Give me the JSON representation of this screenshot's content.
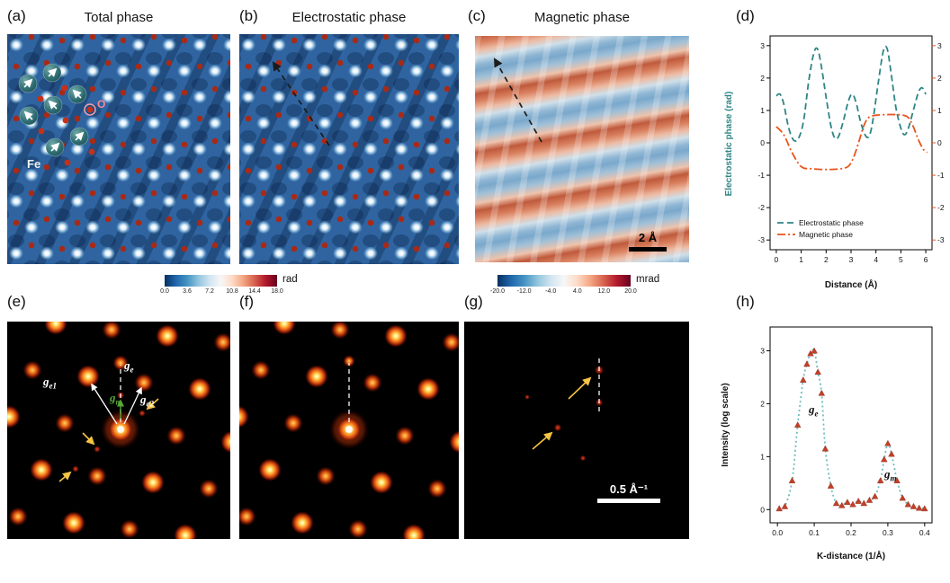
{
  "figure": {
    "panels": {
      "a": {
        "letter": "(a)",
        "title": "Total phase",
        "fe_label": "Fe",
        "o_label": "O"
      },
      "b": {
        "letter": "(b)",
        "title": "Electrostatic phase"
      },
      "c": {
        "letter": "(c)",
        "title": "Magnetic phase",
        "scalebar": "2 Å"
      },
      "d": {
        "letter": "(d)"
      },
      "e": {
        "letter": "(e)",
        "g_e": {
          "base": "g",
          "sub": "e"
        },
        "g_e1": {
          "base": "g",
          "sub": "e1"
        },
        "g_e2": {
          "base": "g",
          "sub": "e2"
        },
        "g_m": {
          "base": "g",
          "sub": "m"
        }
      },
      "f": {
        "letter": "(f)"
      },
      "g": {
        "letter": "(g)",
        "scalebar": "0.5 Å⁻¹"
      },
      "h": {
        "letter": "(h)"
      }
    },
    "colorbars": [
      {
        "unit": "rad",
        "ticks": [
          "0.0",
          "3.6",
          "7.2",
          "10.8",
          "14.4",
          "18.0"
        ]
      },
      {
        "unit": "mrad",
        "ticks": [
          "-20.0",
          "-12.0",
          "-4.0",
          "4.0",
          "12.0",
          "20.0"
        ]
      }
    ],
    "colors": {
      "teal_accent": "#2e8585",
      "orange_accent": "#e8541e",
      "marker_red": "#c2402a",
      "colormap": "blue-white-red"
    }
  },
  "chart_data": [
    {
      "id": "d",
      "type": "line",
      "xlabel": "Distance (Å)",
      "ylabel": "Electrostatic phase (rad)",
      "xlim": [
        -0.25,
        6.25
      ],
      "ylim": [
        -3.3,
        3.3
      ],
      "xticks": [
        "0",
        "1",
        "2",
        "3",
        "4",
        "5",
        "6"
      ],
      "yticks": [
        "3",
        "2",
        "1",
        "0",
        "-1",
        "-2",
        "-3"
      ],
      "yticks_right": [
        "3",
        "2",
        "1",
        "0",
        "-1",
        "-2",
        "-3"
      ],
      "legend_position": "lower left",
      "grid": false,
      "series": [
        {
          "name": "Electrostatic phase",
          "color": "#2e8585",
          "style": "dashed",
          "x": [
            0,
            0.15,
            0.3,
            0.5,
            0.7,
            0.9,
            1.1,
            1.3,
            1.5,
            1.65,
            1.8,
            2.0,
            2.2,
            2.35,
            2.5,
            2.7,
            2.9,
            3.05,
            3.2,
            3.4,
            3.6,
            3.75,
            3.9,
            4.1,
            4.3,
            4.45,
            4.6,
            4.8,
            5.0,
            5.15,
            5.3,
            5.5,
            5.7,
            5.85,
            6.0
          ],
          "y": [
            1.45,
            1.5,
            1.2,
            0.45,
            0.08,
            0.15,
            0.7,
            1.9,
            2.75,
            2.9,
            2.4,
            1.4,
            0.5,
            0.15,
            0.2,
            0.7,
            1.3,
            1.5,
            1.25,
            0.6,
            0.2,
            0.25,
            0.8,
            1.9,
            2.85,
            2.9,
            2.2,
            1.1,
            0.45,
            0.25,
            0.45,
            1.0,
            1.55,
            1.7,
            1.5
          ]
        },
        {
          "name": "Magnetic phase",
          "color": "#e8541e",
          "style": "dashdot",
          "x": [
            0,
            0.3,
            0.6,
            0.9,
            1.1,
            1.4,
            1.8,
            2.2,
            2.6,
            2.9,
            3.1,
            3.3,
            3.5,
            3.7,
            4.0,
            4.4,
            4.8,
            5.1,
            5.3,
            5.5,
            5.7,
            5.9,
            6.05
          ],
          "y": [
            0.5,
            0.25,
            -0.25,
            -0.65,
            -0.78,
            -0.8,
            -0.82,
            -0.82,
            -0.8,
            -0.72,
            -0.45,
            0.0,
            0.5,
            0.78,
            0.85,
            0.87,
            0.87,
            0.85,
            0.78,
            0.5,
            0.1,
            -0.2,
            -0.3
          ]
        }
      ]
    },
    {
      "id": "h",
      "type": "line+marker",
      "xlabel": "K-distance (1/Å)",
      "ylabel": "Intensity (log scale)",
      "xlim": [
        -0.02,
        0.42
      ],
      "ylim": [
        -0.25,
        3.45
      ],
      "xticks": [
        "0.0",
        "0.1",
        "0.2",
        "0.3",
        "0.4"
      ],
      "yticks": [
        "0",
        "1",
        "2",
        "3"
      ],
      "grid": false,
      "marker": {
        "shape": "triangle-up",
        "color": "#c2402a"
      },
      "annotations": [
        {
          "text_base": "g",
          "text_sub": "e",
          "x": 0.115,
          "y": 1.8
        },
        {
          "text_base": "g",
          "text_sub": "m",
          "x": 0.322,
          "y": 0.6
        }
      ],
      "series": [
        {
          "name": "",
          "color": "#6fbdbd",
          "style": "dotted",
          "x": [
            0.005,
            0.02,
            0.04,
            0.055,
            0.07,
            0.08,
            0.09,
            0.1,
            0.11,
            0.12,
            0.13,
            0.145,
            0.16,
            0.175,
            0.19,
            0.205,
            0.22,
            0.235,
            0.25,
            0.265,
            0.28,
            0.29,
            0.3,
            0.31,
            0.325,
            0.34,
            0.355,
            0.37,
            0.385,
            0.4
          ],
          "y": [
            0.02,
            0.06,
            0.55,
            1.6,
            2.45,
            2.75,
            2.95,
            3.0,
            2.6,
            2.2,
            1.15,
            0.45,
            0.12,
            0.08,
            0.14,
            0.1,
            0.16,
            0.12,
            0.18,
            0.25,
            0.55,
            0.95,
            1.25,
            1.05,
            0.55,
            0.22,
            0.1,
            0.06,
            0.03,
            0.02
          ]
        }
      ]
    }
  ]
}
